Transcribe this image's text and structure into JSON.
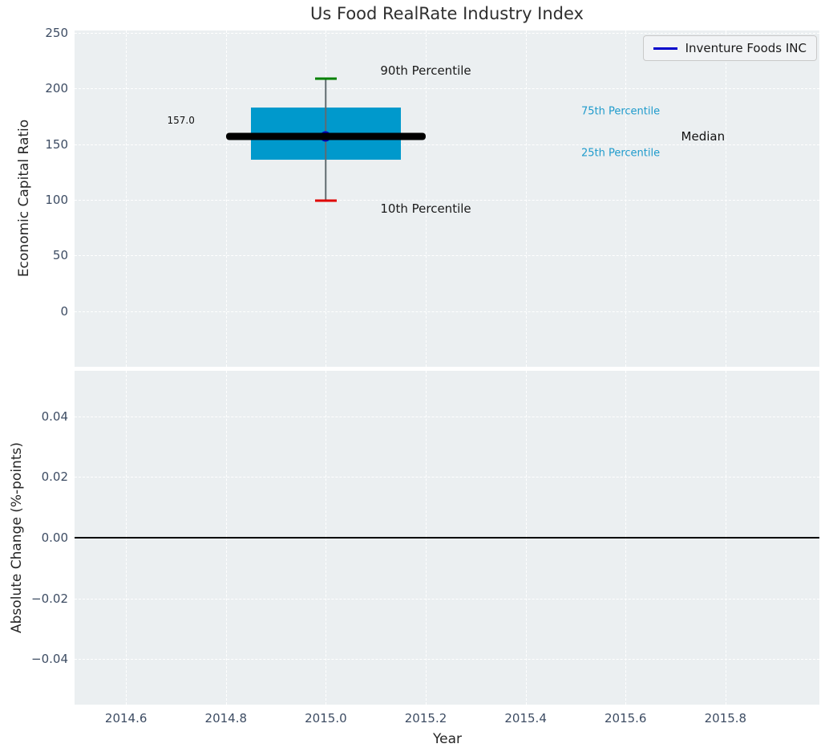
{
  "title": "Us Food RealRate Industry Index",
  "x_axis": {
    "label": "Year"
  },
  "legend": {
    "label": "Inventure Foods INC"
  },
  "colors": {
    "figure_bg": "#ffffff",
    "axes_bg": "#ebeff1",
    "grid": "#ffffff",
    "tick_label": "#3d4c63",
    "box_fill": "#0099cc",
    "median_line": "#000000",
    "whisker": "#606b70",
    "p90_cap": "#008000",
    "p10_cap": "#e00000",
    "company_line": "#0000cb",
    "percentile_label": "#1f9bcc"
  },
  "chart_data": [
    {
      "type": "box",
      "subplot": "top",
      "ylabel": "Economic Capital Ratio",
      "xlim": [
        2014.497,
        2015.988
      ],
      "ylim": [
        -50,
        252
      ],
      "grid": "dashed-white",
      "legend_position": "upper-right",
      "show_xtick_labels": false,
      "xticks": [
        {
          "label": "2014.6",
          "value": 2014.6
        },
        {
          "label": "2014.8",
          "value": 2014.8
        },
        {
          "label": "2015.0",
          "value": 2015.0
        },
        {
          "label": "2015.2",
          "value": 2015.2
        },
        {
          "label": "2015.4",
          "value": 2015.4
        },
        {
          "label": "2015.6",
          "value": 2015.6
        },
        {
          "label": "2015.8",
          "value": 2015.8
        }
      ],
      "yticks": [
        {
          "label": "250",
          "value": 250
        },
        {
          "label": "200",
          "value": 200
        },
        {
          "label": "150",
          "value": 150
        },
        {
          "label": "100",
          "value": 100
        },
        {
          "label": "50",
          "value": 50
        },
        {
          "label": "0",
          "value": 0
        }
      ],
      "box": {
        "x": 2015.0,
        "p90": 209,
        "p75": 183,
        "median": 157,
        "p25": 136,
        "p10": 99,
        "box_half_width": 0.15,
        "median_half_width": 0.2,
        "cap_half_width": 0.022,
        "company": {
          "x": 2015.0,
          "value": 157.0,
          "label": "157.0"
        }
      },
      "annotations": [
        {
          "name": "label-90th-percentile",
          "text": "90th Percentile",
          "x": 2015.2,
          "y": 216,
          "size": 15,
          "color": "#1a1a1a"
        },
        {
          "name": "label-10th-percentile",
          "text": "10th Percentile",
          "x": 2015.2,
          "y": 92,
          "size": 15,
          "color": "#1a1a1a"
        },
        {
          "name": "label-75th-percentile",
          "text": "75th Percentile",
          "x": 2015.59,
          "y": 179,
          "size": 13,
          "color": "#1f9bcc"
        },
        {
          "name": "label-median",
          "text": "Median",
          "x": 2015.755,
          "y": 157,
          "size": 15,
          "color": "#111111"
        },
        {
          "name": "label-25th-percentile",
          "text": "25th Percentile",
          "x": 2015.59,
          "y": 142,
          "size": 13,
          "color": "#1f9bcc"
        },
        {
          "name": "label-company-value",
          "text": "157.0",
          "x": 2014.71,
          "y": 171,
          "size": 12,
          "color": "#111111"
        }
      ]
    },
    {
      "type": "line",
      "subplot": "bottom",
      "ylabel": "Absolute Change (%-points)",
      "xlabel": "Year",
      "xlim": [
        2014.497,
        2015.988
      ],
      "ylim": [
        -0.055,
        0.055
      ],
      "grid": "dashed-white",
      "show_xtick_labels": true,
      "zero_line": 0.0,
      "xticks": [
        {
          "label": "2014.6",
          "value": 2014.6
        },
        {
          "label": "2014.8",
          "value": 2014.8
        },
        {
          "label": "2015.0",
          "value": 2015.0
        },
        {
          "label": "2015.2",
          "value": 2015.2
        },
        {
          "label": "2015.4",
          "value": 2015.4
        },
        {
          "label": "2015.6",
          "value": 2015.6
        },
        {
          "label": "2015.8",
          "value": 2015.8
        }
      ],
      "yticks": [
        {
          "label": "0.04",
          "value": 0.04
        },
        {
          "label": "0.02",
          "value": 0.02
        },
        {
          "label": "0.00",
          "value": 0.0
        },
        {
          "label": "−0.02",
          "value": -0.02
        },
        {
          "label": "−0.04",
          "value": -0.04
        }
      ]
    }
  ]
}
